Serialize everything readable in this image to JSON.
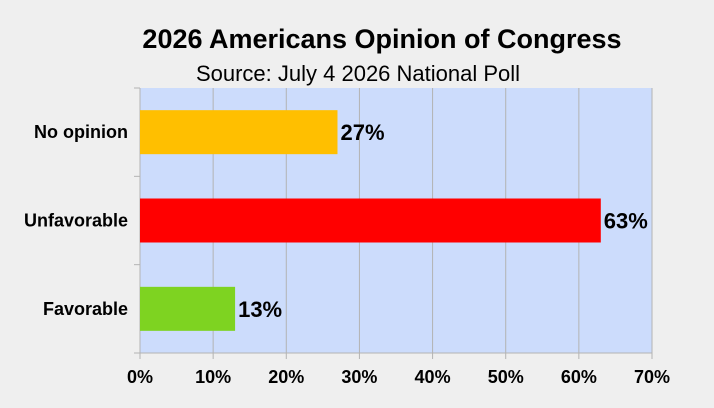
{
  "chart_data": {
    "type": "bar",
    "orientation": "horizontal",
    "title": "2026 Americans Opinion of Congress",
    "subtitle": "Source: July 4 2026 National Poll",
    "categories": [
      "No opinion",
      "Unfavorable",
      "Favorable"
    ],
    "values": [
      27,
      63,
      13
    ],
    "data_labels": [
      "27%",
      "63%",
      "13%"
    ],
    "colors": [
      "#ffbf00",
      "#ff0000",
      "#7ed321"
    ],
    "xlim": [
      0,
      70
    ],
    "x_ticks": [
      0,
      10,
      20,
      30,
      40,
      50,
      60,
      70
    ],
    "x_tick_labels": [
      "0%",
      "10%",
      "20%",
      "30%",
      "40%",
      "50%",
      "60%",
      "70%"
    ],
    "xlabel": "",
    "ylabel": "",
    "grid": true,
    "plot_background": "#ccdcfc",
    "grid_color": "#b3b3b3",
    "legend": "none"
  }
}
